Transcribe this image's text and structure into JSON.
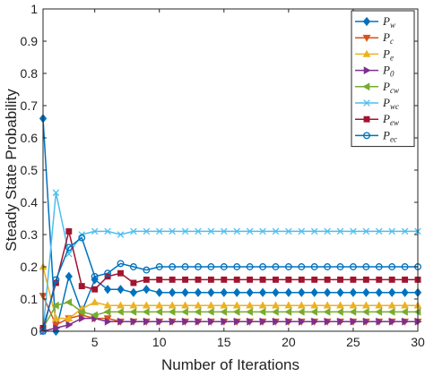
{
  "chart_data": {
    "type": "line",
    "xlabel": "Number of Iterations",
    "ylabel": "Steady State Probability",
    "xlim": [
      1,
      30
    ],
    "ylim": [
      0,
      1
    ],
    "xticks": [
      5,
      10,
      15,
      20,
      25,
      30
    ],
    "yticks": [
      0,
      0.1,
      0.2,
      0.3,
      0.4,
      0.5,
      0.6,
      0.7,
      0.8,
      0.9,
      1
    ],
    "ytick_labels": [
      "0",
      "0.1",
      "0.2",
      "0.3",
      "0.4",
      "0.5",
      "0.6",
      "0.7",
      "0.8",
      "0.9",
      "1"
    ],
    "grid": false,
    "legend_position": "top-right",
    "x": [
      1,
      2,
      3,
      4,
      5,
      6,
      7,
      8,
      9,
      10,
      11,
      12,
      13,
      14,
      15,
      16,
      17,
      18,
      19,
      20,
      21,
      22,
      23,
      24,
      25,
      26,
      27,
      28,
      29,
      30
    ],
    "series": [
      {
        "name": "P",
        "sub": "w",
        "color": "#0072BD",
        "marker": "diamond",
        "values": [
          0.66,
          0.0,
          0.17,
          0.06,
          0.16,
          0.13,
          0.13,
          0.12,
          0.13,
          0.12,
          0.12,
          0.12,
          0.12,
          0.12,
          0.12,
          0.12,
          0.12,
          0.12,
          0.12,
          0.12,
          0.12,
          0.12,
          0.12,
          0.12,
          0.12,
          0.12,
          0.12,
          0.12,
          0.12,
          0.12
        ]
      },
      {
        "name": "P",
        "sub": "c",
        "color": "#D95319",
        "marker": "triangle-down",
        "values": [
          0.11,
          0.02,
          0.04,
          0.05,
          0.04,
          0.04,
          0.03,
          0.03,
          0.03,
          0.03,
          0.03,
          0.03,
          0.03,
          0.03,
          0.03,
          0.03,
          0.03,
          0.03,
          0.03,
          0.03,
          0.03,
          0.03,
          0.03,
          0.03,
          0.03,
          0.03,
          0.03,
          0.03,
          0.03,
          0.03
        ]
      },
      {
        "name": "P",
        "sub": "e",
        "color": "#EDB120",
        "marker": "triangle-up",
        "values": [
          0.2,
          0.04,
          0.04,
          0.07,
          0.09,
          0.08,
          0.08,
          0.08,
          0.08,
          0.08,
          0.08,
          0.08,
          0.08,
          0.08,
          0.08,
          0.08,
          0.08,
          0.08,
          0.08,
          0.08,
          0.08,
          0.08,
          0.08,
          0.08,
          0.08,
          0.08,
          0.08,
          0.08,
          0.08,
          0.08
        ]
      },
      {
        "name": "P",
        "sub": "0",
        "color": "#7E2F8E",
        "marker": "triangle-right",
        "values": [
          0.0,
          0.01,
          0.02,
          0.04,
          0.04,
          0.03,
          0.03,
          0.03,
          0.03,
          0.03,
          0.03,
          0.03,
          0.03,
          0.03,
          0.03,
          0.03,
          0.03,
          0.03,
          0.03,
          0.03,
          0.03,
          0.03,
          0.03,
          0.03,
          0.03,
          0.03,
          0.03,
          0.03,
          0.03,
          0.03
        ]
      },
      {
        "name": "P",
        "sub": "cw",
        "color": "#77AC30",
        "marker": "triangle-left",
        "values": [
          0.01,
          0.08,
          0.09,
          0.06,
          0.05,
          0.06,
          0.06,
          0.06,
          0.06,
          0.06,
          0.06,
          0.06,
          0.06,
          0.06,
          0.06,
          0.06,
          0.06,
          0.06,
          0.06,
          0.06,
          0.06,
          0.06,
          0.06,
          0.06,
          0.06,
          0.06,
          0.06,
          0.06,
          0.06,
          0.06
        ]
      },
      {
        "name": "P",
        "sub": "wc",
        "color": "#4DBEEE",
        "marker": "x",
        "values": [
          0.0,
          0.43,
          0.24,
          0.3,
          0.31,
          0.31,
          0.3,
          0.31,
          0.31,
          0.31,
          0.31,
          0.31,
          0.31,
          0.31,
          0.31,
          0.31,
          0.31,
          0.31,
          0.31,
          0.31,
          0.31,
          0.31,
          0.31,
          0.31,
          0.31,
          0.31,
          0.31,
          0.31,
          0.31,
          0.31
        ]
      },
      {
        "name": "P",
        "sub": "ew",
        "color": "#A2142F",
        "marker": "square",
        "values": [
          0.01,
          0.15,
          0.31,
          0.14,
          0.13,
          0.17,
          0.18,
          0.15,
          0.16,
          0.16,
          0.16,
          0.16,
          0.16,
          0.16,
          0.16,
          0.16,
          0.16,
          0.16,
          0.16,
          0.16,
          0.16,
          0.16,
          0.16,
          0.16,
          0.16,
          0.16,
          0.16,
          0.16,
          0.16,
          0.16
        ]
      },
      {
        "name": "P",
        "sub": "ec",
        "color": "#0072BD",
        "marker": "circle",
        "values": [
          0.0,
          0.16,
          0.26,
          0.29,
          0.17,
          0.18,
          0.21,
          0.2,
          0.19,
          0.2,
          0.2,
          0.2,
          0.2,
          0.2,
          0.2,
          0.2,
          0.2,
          0.2,
          0.2,
          0.2,
          0.2,
          0.2,
          0.2,
          0.2,
          0.2,
          0.2,
          0.2,
          0.2,
          0.2,
          0.2
        ]
      }
    ]
  }
}
